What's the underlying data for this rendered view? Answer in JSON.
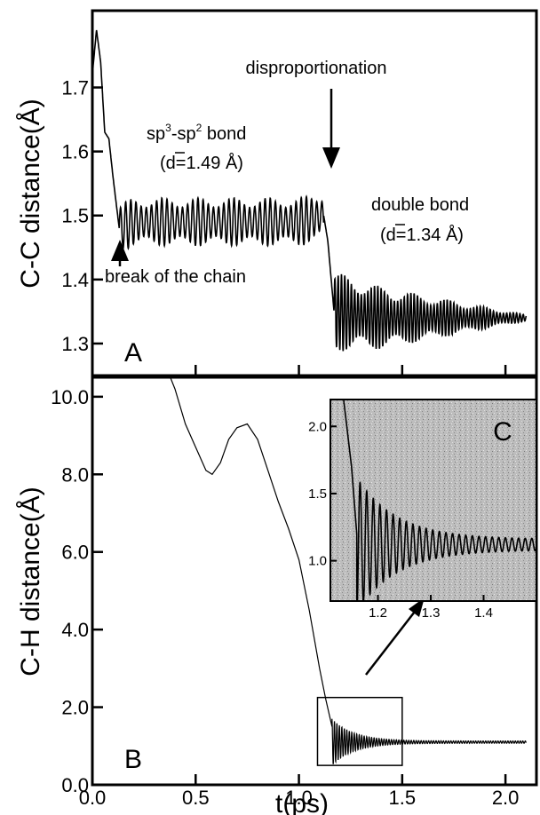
{
  "chart_data": [
    {
      "panel": "A",
      "type": "line",
      "ylabel": "C-C distance(Å)",
      "ylim": [
        1.25,
        1.82
      ],
      "yticks": [
        1.3,
        1.4,
        1.5,
        1.6,
        1.7
      ],
      "ytick_labels": [
        "1.3",
        "1.4",
        "1.5",
        "1.6",
        "1.7"
      ],
      "xlim": [
        0.0,
        2.15
      ],
      "xticks": [
        0.0,
        0.5,
        1.0,
        1.5,
        2.0
      ],
      "series": [
        {
          "envelope": [
            {
              "x": 0.0,
              "y": 1.72
            },
            {
              "x": 0.02,
              "y": 1.79
            },
            {
              "x": 0.04,
              "y": 1.74
            },
            {
              "x": 0.06,
              "y": 1.63
            },
            {
              "x": 0.08,
              "y": 1.62
            },
            {
              "x": 0.1,
              "y": 1.56
            },
            {
              "x": 0.13,
              "y": 1.48
            },
            {
              "x": 0.2,
              "y": 1.49
            },
            {
              "x": 0.6,
              "y": 1.49
            },
            {
              "x": 1.0,
              "y": 1.49
            },
            {
              "x": 1.12,
              "y": 1.5
            },
            {
              "x": 1.14,
              "y": 1.46
            },
            {
              "x": 1.17,
              "y": 1.35
            },
            {
              "x": 1.4,
              "y": 1.34
            },
            {
              "x": 2.1,
              "y": 1.34
            }
          ],
          "oscillation": [
            {
              "t0": 0.13,
              "t1": 1.12,
              "amplitude": 0.03,
              "period": 0.025
            },
            {
              "t0": 1.17,
              "t1": 2.1,
              "amplitude_start": 0.05,
              "amplitude_end": 0.004,
              "period": 0.016
            }
          ]
        }
      ],
      "annotations": {
        "sp_prefix": "sp",
        "sp3_sup": "3",
        "sp_mid": "-sp",
        "sp2_sup": "2",
        "sp_bond_suffix": " bond",
        "d1": "(d=1.49 Å)",
        "disproportionation": "disproportionation",
        "double_bond": "double bond",
        "d2": "(d=1.34 Å)",
        "break_chain": "break of the chain"
      },
      "panel_label": "A"
    },
    {
      "panel": "B",
      "type": "line",
      "ylabel": "C-H distance(Å)",
      "xlabel": "t(ps)",
      "xlim": [
        0.0,
        2.15
      ],
      "ylim": [
        0.0,
        10.5
      ],
      "xticks": [
        0.0,
        0.5,
        1.0,
        1.5,
        2.0
      ],
      "xtick_labels": [
        "0.0",
        "0.5",
        "1.0",
        "1.5",
        "2.0"
      ],
      "yticks": [
        0.0,
        2.0,
        4.0,
        6.0,
        8.0,
        10.0
      ],
      "ytick_labels": [
        "0.0",
        "2.0",
        "4.0",
        "6.0",
        "8.0",
        "10.0"
      ],
      "series": [
        {
          "points": [
            {
              "x": 0.37,
              "y": 10.6
            },
            {
              "x": 0.4,
              "y": 10.2
            },
            {
              "x": 0.45,
              "y": 9.3
            },
            {
              "x": 0.5,
              "y": 8.7
            },
            {
              "x": 0.55,
              "y": 8.1
            },
            {
              "x": 0.58,
              "y": 8.0
            },
            {
              "x": 0.62,
              "y": 8.3
            },
            {
              "x": 0.66,
              "y": 8.9
            },
            {
              "x": 0.7,
              "y": 9.2
            },
            {
              "x": 0.75,
              "y": 9.3
            },
            {
              "x": 0.8,
              "y": 8.9
            },
            {
              "x": 0.85,
              "y": 8.1
            },
            {
              "x": 0.9,
              "y": 7.3
            },
            {
              "x": 0.95,
              "y": 6.6
            },
            {
              "x": 1.0,
              "y": 5.8
            },
            {
              "x": 1.05,
              "y": 4.5
            },
            {
              "x": 1.1,
              "y": 3.0
            },
            {
              "x": 1.13,
              "y": 2.2
            },
            {
              "x": 1.16,
              "y": 1.5
            }
          ],
          "oscillation": {
            "t0": 1.16,
            "t1": 2.1,
            "center": 1.1,
            "amplitude_start": 0.6,
            "amplitude_end": 0.03,
            "period": 0.012
          }
        }
      ],
      "zoom_box": {
        "x0": 1.09,
        "x1": 1.5,
        "y0": 0.5,
        "y1": 2.25
      },
      "panel_label": "B"
    },
    {
      "panel": "C",
      "type": "line",
      "inset": true,
      "xlim": [
        1.11,
        1.5
      ],
      "ylim": [
        0.7,
        2.2
      ],
      "xticks": [
        1.2,
        1.3,
        1.4
      ],
      "xtick_labels": [
        "1.2",
        "1.3",
        "1.4"
      ],
      "yticks": [
        1.0,
        1.5,
        2.0
      ],
      "ytick_labels": [
        "1.0",
        "1.5",
        "2.0"
      ],
      "series": [
        {
          "lead_in": [
            {
              "x": 1.135,
              "y": 2.2
            },
            {
              "x": 1.15,
              "y": 1.7
            },
            {
              "x": 1.16,
              "y": 1.2
            }
          ],
          "oscillation": {
            "t0": 1.16,
            "t1": 1.5,
            "center": 1.12,
            "amplitude_start": 0.5,
            "amplitude_end": 0.04,
            "period": 0.0125
          }
        }
      ],
      "panel_label": "C"
    }
  ]
}
